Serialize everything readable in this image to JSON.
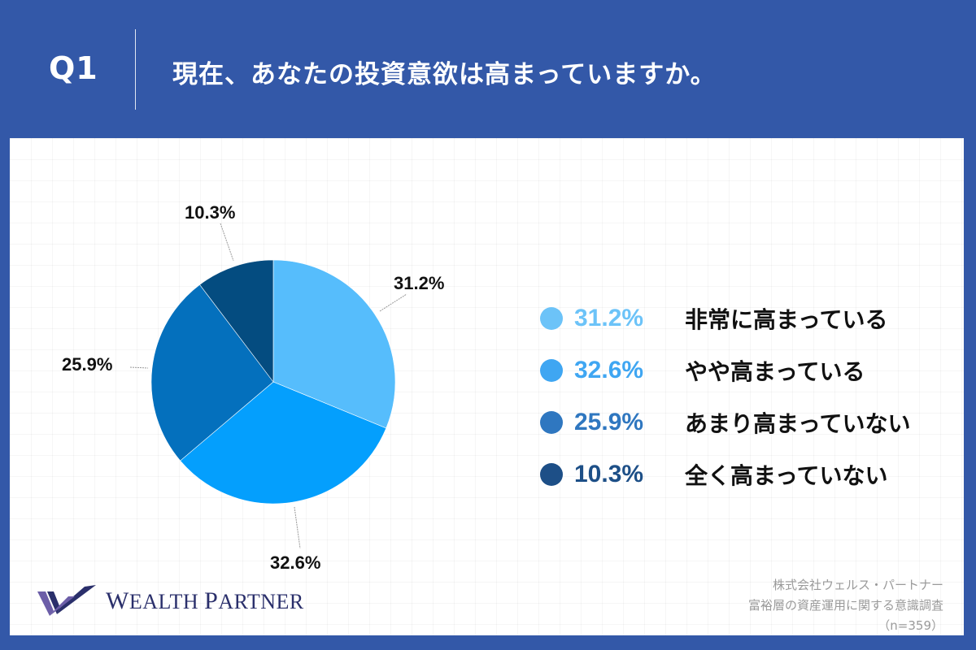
{
  "header": {
    "question_label": "Q1",
    "title": "現在、あなたの投資意欲は高まっていますか。"
  },
  "chart_data": {
    "type": "pie",
    "title": "現在、あなたの投資意欲は高まっていますか。",
    "categories": [
      "非常に高まっている",
      "やや高まっている",
      "あまり高まっていない",
      "全く高まっていない"
    ],
    "values": [
      31.2,
      32.6,
      25.9,
      10.3
    ],
    "colors": [
      "#56bdfc",
      "#049ffd",
      "#0470bd",
      "#044c80"
    ],
    "start_angle": "12 o'clock, clockwise",
    "legend_position": "right",
    "sample_size": "n=359"
  },
  "pie_labels": {
    "s0": "31.2%",
    "s1": "32.6%",
    "s2": "25.9%",
    "s3": "10.3%"
  },
  "legend": {
    "items": [
      {
        "pct": "31.2%",
        "label": "非常に高まっている",
        "color": "#6cc3f8"
      },
      {
        "pct": "32.6%",
        "label": "やや高まっている",
        "color": "#3fa6f2"
      },
      {
        "pct": "25.9%",
        "label": "あまり高まっていない",
        "color": "#2f77c0"
      },
      {
        "pct": "10.3%",
        "label": "全く高まっていない",
        "color": "#1d4f87"
      }
    ]
  },
  "footer": {
    "logo_text_w": "W",
    "logo_text_rest1": "EALTH ",
    "logo_text_p": "P",
    "logo_text_rest2": "ARTNER",
    "source_line1": "株式会社ウェルス・パートナー",
    "source_line2": "富裕層の資産運用に関する意識調査",
    "source_line3": "（n=359）"
  },
  "colors": {
    "frame": "#3358a8",
    "panel": "#ffffff",
    "logo": "#2a2f6b",
    "logo_accent": "#6c5ea8"
  }
}
